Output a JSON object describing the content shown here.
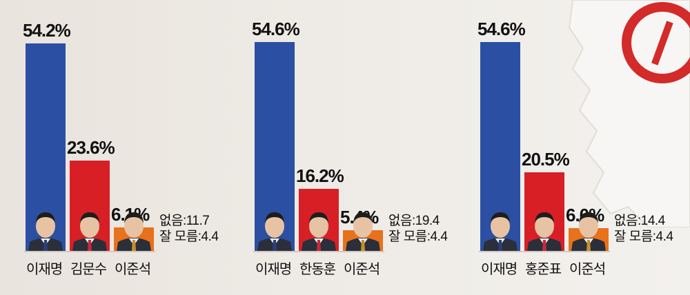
{
  "colors": {
    "blue": "#2b4fa3",
    "red": "#d81f26",
    "orange": "#e8711c",
    "text": "#111111"
  },
  "icons": [
    "ballot-check-mark-icon",
    "korea-map-graphic"
  ],
  "chart_data": [
    {
      "type": "bar",
      "categories": [
        "이재명",
        "김문수",
        "이준석"
      ],
      "values": [
        54.2,
        23.6,
        6.1
      ],
      "value_labels": [
        "54.2%",
        "23.6%",
        "6.1%"
      ],
      "bar_colors": [
        "#2b4fa3",
        "#d81f26",
        "#e8711c"
      ],
      "others": {
        "none_label": "없음",
        "none_value": "11.7",
        "unknown_label": "잘 모름",
        "unknown_value": "4.4"
      }
    },
    {
      "type": "bar",
      "categories": [
        "이재명",
        "한동훈",
        "이준석"
      ],
      "values": [
        54.6,
        16.2,
        5.4
      ],
      "value_labels": [
        "54.6%",
        "16.2%",
        "5.4%"
      ],
      "bar_colors": [
        "#2b4fa3",
        "#d81f26",
        "#e8711c"
      ],
      "others": {
        "none_label": "없음",
        "none_value": "19.4",
        "unknown_label": "잘 모름",
        "unknown_value": "4.4"
      }
    },
    {
      "type": "bar",
      "categories": [
        "이재명",
        "홍준표",
        "이준석"
      ],
      "values": [
        54.6,
        20.5,
        6.0
      ],
      "value_labels": [
        "54.6%",
        "20.5%",
        "6.0%"
      ],
      "bar_colors": [
        "#2b4fa3",
        "#d81f26",
        "#e8711c"
      ],
      "others": {
        "none_label": "없음",
        "none_value": "14.4",
        "unknown_label": "잘 모름",
        "unknown_value": "4.4"
      }
    }
  ]
}
